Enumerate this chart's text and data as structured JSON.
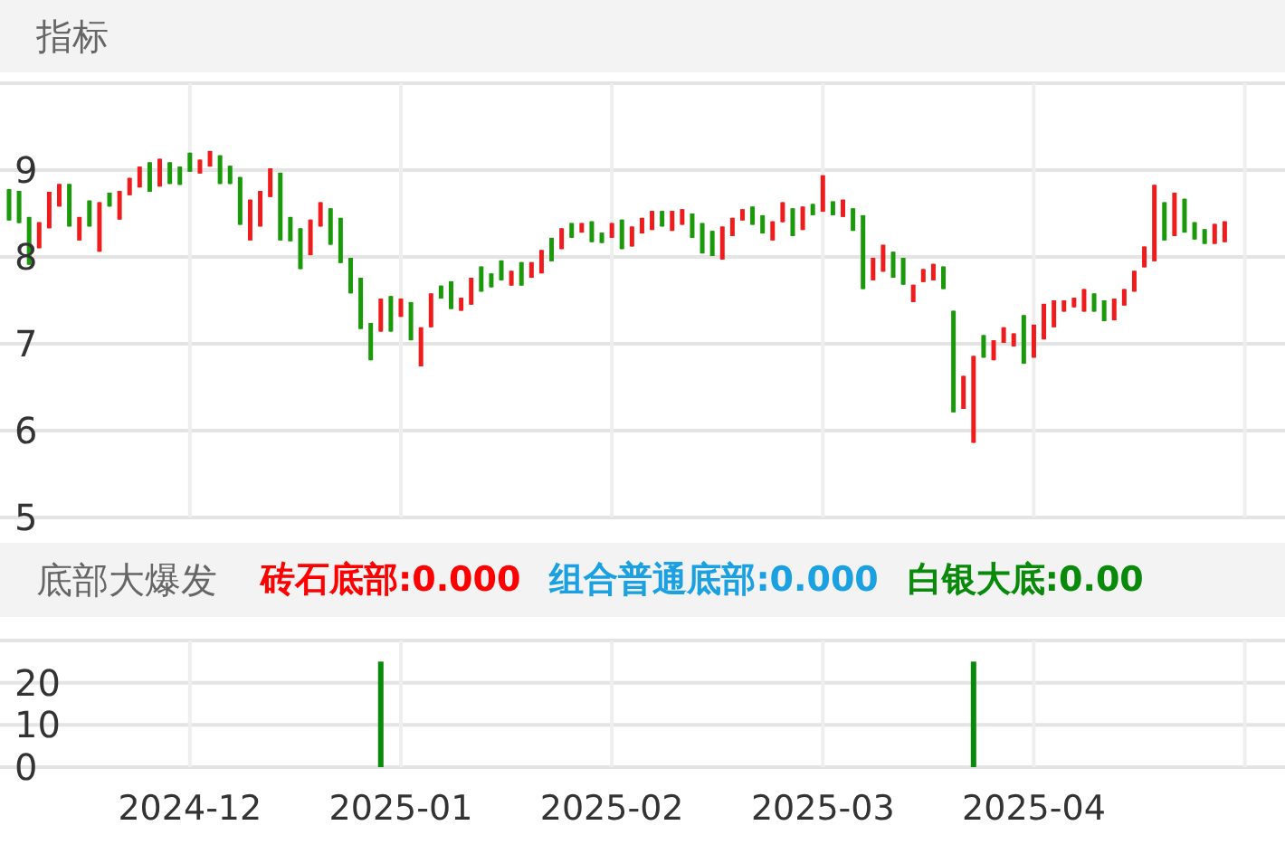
{
  "chart_data": [
    {
      "type": "candlestick",
      "title": "指标",
      "categories": [
        null,
        null,
        null,
        null,
        null,
        null,
        null,
        null,
        null,
        null,
        null,
        null,
        null,
        null,
        null,
        null,
        null,
        null,
        "2024-12",
        null,
        null,
        null,
        null,
        null,
        null,
        null,
        null,
        null,
        null,
        null,
        null,
        null,
        null,
        null,
        null,
        null,
        null,
        null,
        null,
        "2025-01",
        null,
        null,
        null,
        null,
        null,
        null,
        null,
        null,
        null,
        null,
        null,
        null,
        null,
        null,
        null,
        null,
        null,
        null,
        null,
        null,
        "2025-02",
        null,
        null,
        null,
        null,
        null,
        null,
        null,
        null,
        null,
        null,
        null,
        null,
        null,
        null,
        null,
        null,
        null,
        null,
        null,
        null,
        "2025-03",
        null,
        null,
        null,
        null,
        null,
        null,
        null,
        null,
        null,
        null,
        null,
        null,
        null,
        null,
        null,
        null,
        null,
        null,
        null,
        null,
        "2025-04",
        null,
        null,
        null,
        null,
        null,
        null,
        null,
        null,
        null,
        null,
        null,
        null,
        null,
        null,
        null,
        null,
        null,
        null,
        null
      ],
      "ohlc": [
        [
          8.78,
          8.78,
          8.42,
          8.42
        ],
        [
          8.76,
          8.76,
          8.39,
          8.39
        ],
        [
          8.46,
          8.46,
          7.91,
          7.91
        ],
        [
          8.1,
          8.4,
          8.1,
          8.4
        ],
        [
          8.33,
          8.75,
          8.33,
          8.75
        ],
        [
          8.58,
          8.84,
          8.58,
          8.84
        ],
        [
          8.84,
          8.84,
          8.35,
          8.35
        ],
        [
          8.19,
          8.46,
          8.19,
          8.46
        ],
        [
          8.65,
          8.65,
          8.35,
          8.35
        ],
        [
          8.06,
          8.63,
          8.06,
          8.63
        ],
        [
          8.74,
          8.74,
          8.58,
          8.58
        ],
        [
          8.43,
          8.76,
          8.43,
          8.76
        ],
        [
          8.71,
          8.91,
          8.71,
          8.91
        ],
        [
          8.8,
          9.04,
          8.8,
          9.04
        ],
        [
          9.09,
          9.09,
          8.75,
          8.75
        ],
        [
          8.81,
          9.13,
          8.81,
          9.13
        ],
        [
          9.09,
          9.09,
          8.84,
          8.84
        ],
        [
          9.04,
          9.04,
          8.83,
          8.83
        ],
        [
          9.2,
          9.2,
          8.98,
          8.98
        ],
        [
          8.96,
          9.12,
          8.96,
          9.12
        ],
        [
          9.04,
          9.22,
          9.04,
          9.22
        ],
        [
          9.17,
          9.17,
          8.84,
          8.84
        ],
        [
          9.05,
          9.05,
          8.84,
          8.84
        ],
        [
          8.92,
          8.92,
          8.37,
          8.37
        ],
        [
          8.19,
          8.66,
          8.19,
          8.66
        ],
        [
          8.35,
          8.76,
          8.35,
          8.76
        ],
        [
          8.69,
          9.02,
          8.69,
          9.02
        ],
        [
          8.97,
          8.97,
          8.19,
          8.19
        ],
        [
          8.46,
          8.46,
          8.18,
          8.18
        ],
        [
          8.33,
          8.33,
          7.86,
          7.86
        ],
        [
          8.02,
          8.43,
          8.02,
          8.43
        ],
        [
          8.35,
          8.63,
          8.35,
          8.63
        ],
        [
          8.56,
          8.56,
          8.14,
          8.14
        ],
        [
          8.45,
          8.45,
          7.93,
          7.93
        ],
        [
          7.99,
          7.99,
          7.58,
          7.58
        ],
        [
          7.76,
          7.76,
          7.17,
          7.17
        ],
        [
          7.24,
          7.24,
          6.81,
          6.81
        ],
        [
          7.14,
          7.52,
          7.14,
          7.52
        ],
        [
          7.55,
          7.55,
          7.14,
          7.14
        ],
        [
          7.31,
          7.52,
          7.31,
          7.52
        ],
        [
          7.48,
          7.48,
          7.04,
          7.04
        ],
        [
          6.74,
          7.19,
          6.74,
          7.19
        ],
        [
          7.19,
          7.58,
          7.19,
          7.58
        ],
        [
          7.67,
          7.67,
          7.52,
          7.52
        ],
        [
          7.72,
          7.72,
          7.4,
          7.4
        ],
        [
          7.38,
          7.53,
          7.38,
          7.53
        ],
        [
          7.45,
          7.76,
          7.45,
          7.76
        ],
        [
          7.89,
          7.89,
          7.6,
          7.6
        ],
        [
          7.81,
          7.81,
          7.65,
          7.65
        ],
        [
          7.96,
          7.96,
          7.73,
          7.73
        ],
        [
          7.67,
          7.84,
          7.67,
          7.84
        ],
        [
          7.94,
          7.94,
          7.67,
          7.67
        ],
        [
          7.76,
          7.94,
          7.76,
          7.94
        ],
        [
          7.81,
          8.08,
          7.81,
          8.08
        ],
        [
          8.22,
          8.22,
          7.95,
          7.95
        ],
        [
          8.09,
          8.33,
          8.09,
          8.33
        ],
        [
          8.39,
          8.39,
          8.22,
          8.22
        ],
        [
          8.28,
          8.39,
          8.28,
          8.39
        ],
        [
          8.41,
          8.41,
          8.17,
          8.17
        ],
        [
          8.28,
          8.28,
          8.16,
          8.16
        ],
        [
          8.22,
          8.39,
          8.22,
          8.39
        ],
        [
          8.43,
          8.43,
          8.09,
          8.09
        ],
        [
          8.12,
          8.35,
          8.12,
          8.35
        ],
        [
          8.27,
          8.45,
          8.27,
          8.45
        ],
        [
          8.31,
          8.53,
          8.31,
          8.53
        ],
        [
          8.53,
          8.53,
          8.35,
          8.35
        ],
        [
          8.3,
          8.53,
          8.3,
          8.53
        ],
        [
          8.37,
          8.55,
          8.37,
          8.55
        ],
        [
          8.5,
          8.5,
          8.22,
          8.22
        ],
        [
          8.39,
          8.39,
          8.04,
          8.04
        ],
        [
          8.3,
          8.3,
          8.01,
          8.01
        ],
        [
          7.97,
          8.35,
          7.97,
          8.35
        ],
        [
          8.24,
          8.45,
          8.24,
          8.45
        ],
        [
          8.42,
          8.55,
          8.42,
          8.55
        ],
        [
          8.58,
          8.58,
          8.37,
          8.37
        ],
        [
          8.48,
          8.48,
          8.27,
          8.27
        ],
        [
          8.19,
          8.41,
          8.19,
          8.41
        ],
        [
          8.4,
          8.63,
          8.4,
          8.63
        ],
        [
          8.56,
          8.56,
          8.24,
          8.24
        ],
        [
          8.31,
          8.58,
          8.31,
          8.58
        ],
        [
          8.61,
          8.61,
          8.48,
          8.48
        ],
        [
          8.52,
          8.94,
          8.52,
          8.94
        ],
        [
          8.64,
          8.64,
          8.48,
          8.48
        ],
        [
          8.46,
          8.66,
          8.46,
          8.66
        ],
        [
          8.56,
          8.56,
          8.3,
          8.3
        ],
        [
          8.48,
          8.48,
          7.63,
          7.63
        ],
        [
          7.73,
          7.99,
          7.73,
          7.99
        ],
        [
          7.83,
          8.14,
          7.83,
          8.14
        ],
        [
          8.06,
          8.06,
          7.76,
          7.76
        ],
        [
          7.99,
          7.99,
          7.68,
          7.68
        ],
        [
          7.48,
          7.68,
          7.48,
          7.68
        ],
        [
          7.71,
          7.86,
          7.71,
          7.86
        ],
        [
          7.73,
          7.92,
          7.73,
          7.92
        ],
        [
          7.89,
          7.89,
          7.63,
          7.63
        ],
        [
          7.38,
          7.38,
          6.21,
          6.21
        ],
        [
          6.25,
          6.63,
          6.25,
          6.63
        ],
        [
          5.86,
          6.86,
          5.86,
          6.86
        ],
        [
          7.1,
          7.1,
          6.84,
          6.84
        ],
        [
          6.81,
          7.04,
          6.81,
          7.04
        ],
        [
          7.01,
          7.19,
          7.01,
          7.19
        ],
        [
          6.97,
          7.12,
          6.97,
          7.12
        ],
        [
          7.33,
          7.33,
          6.77,
          6.77
        ],
        [
          6.84,
          7.22,
          6.84,
          7.22
        ],
        [
          7.05,
          7.46,
          7.05,
          7.46
        ],
        [
          7.19,
          7.5,
          7.19,
          7.5
        ],
        [
          7.37,
          7.5,
          7.37,
          7.5
        ],
        [
          7.42,
          7.53,
          7.42,
          7.53
        ],
        [
          7.37,
          7.63,
          7.37,
          7.63
        ],
        [
          7.58,
          7.58,
          7.37,
          7.37
        ],
        [
          7.5,
          7.5,
          7.26,
          7.26
        ],
        [
          7.27,
          7.52,
          7.27,
          7.52
        ],
        [
          7.44,
          7.63,
          7.44,
          7.63
        ],
        [
          7.6,
          7.84,
          7.6,
          7.84
        ],
        [
          7.88,
          8.12,
          7.88,
          8.12
        ],
        [
          7.95,
          8.83,
          7.95,
          8.83
        ],
        [
          8.63,
          8.63,
          8.19,
          8.19
        ],
        [
          8.24,
          8.74,
          8.24,
          8.74
        ],
        [
          8.67,
          8.67,
          8.28,
          8.28
        ],
        [
          8.4,
          8.4,
          8.2,
          8.2
        ],
        [
          8.32,
          8.32,
          8.15,
          8.15
        ],
        [
          8.15,
          8.38,
          8.15,
          8.38
        ],
        [
          8.17,
          8.41,
          8.17,
          8.41
        ]
      ],
      "ylim": [
        5,
        10
      ],
      "yticks": [
        5,
        6,
        7,
        8,
        9,
        {
          "value": 10,
          "label": null
        }
      ],
      "grid": true,
      "tick_labels": "y"
    },
    {
      "type": "bar",
      "title": "底部大爆发",
      "annotations": [
        "砖石底部:0.000",
        "组合普通底部:0.000",
        "白银大底:0.00"
      ],
      "categories": [
        null,
        null,
        null,
        null,
        null,
        null,
        null,
        null,
        null,
        null,
        null,
        null,
        null,
        null,
        null,
        null,
        null,
        null,
        "2024-12",
        null,
        null,
        null,
        null,
        null,
        null,
        null,
        null,
        null,
        null,
        null,
        null,
        null,
        null,
        null,
        null,
        null,
        null,
        null,
        null,
        "2025-01",
        null,
        null,
        null,
        null,
        null,
        null,
        null,
        null,
        null,
        null,
        null,
        null,
        null,
        null,
        null,
        null,
        null,
        null,
        null,
        null,
        "2025-02",
        null,
        null,
        null,
        null,
        null,
        null,
        null,
        null,
        null,
        null,
        null,
        null,
        null,
        null,
        null,
        null,
        null,
        null,
        null,
        null,
        "2025-03",
        null,
        null,
        null,
        null,
        null,
        null,
        null,
        null,
        null,
        null,
        null,
        null,
        null,
        null,
        null,
        null,
        null,
        null,
        null,
        null,
        "2025-04",
        null,
        null,
        null,
        null,
        null,
        null,
        null,
        null,
        null,
        null,
        null,
        null,
        null,
        null,
        null,
        null,
        null,
        null,
        null
      ],
      "values": [
        null,
        null,
        null,
        null,
        null,
        null,
        null,
        null,
        null,
        null,
        null,
        null,
        null,
        null,
        null,
        null,
        null,
        null,
        null,
        null,
        null,
        null,
        null,
        null,
        null,
        null,
        null,
        null,
        null,
        null,
        null,
        null,
        null,
        null,
        null,
        null,
        null,
        25,
        null,
        null,
        null,
        null,
        null,
        null,
        null,
        null,
        null,
        null,
        null,
        null,
        null,
        null,
        null,
        null,
        null,
        null,
        null,
        null,
        null,
        null,
        null,
        null,
        null,
        null,
        null,
        null,
        null,
        null,
        null,
        null,
        null,
        null,
        null,
        null,
        null,
        null,
        null,
        null,
        null,
        null,
        null,
        null,
        null,
        null,
        null,
        null,
        null,
        null,
        null,
        null,
        null,
        null,
        null,
        null,
        null,
        null,
        25,
        null,
        null,
        null,
        null,
        null,
        null,
        null,
        null,
        null,
        null,
        null,
        null,
        null,
        null,
        null,
        null,
        null,
        null,
        null,
        null,
        null,
        null,
        null,
        null,
        null
      ],
      "color": "#0a8a0a",
      "ylim": [
        0,
        30
      ],
      "yticks": [
        0,
        10,
        20,
        {
          "value": 30,
          "label": null
        }
      ],
      "grid": true
    }
  ]
}
